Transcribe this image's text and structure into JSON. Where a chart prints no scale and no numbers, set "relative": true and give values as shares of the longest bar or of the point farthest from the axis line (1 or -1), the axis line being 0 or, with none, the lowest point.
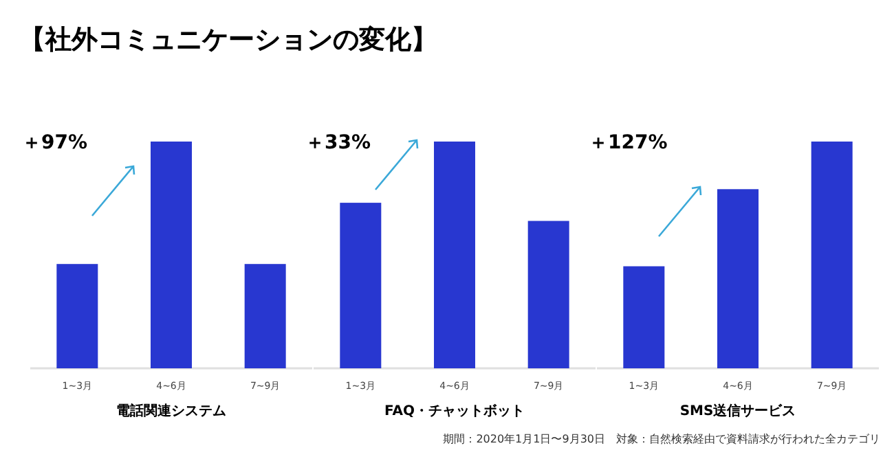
{
  "chart_data": [
    {
      "type": "bar",
      "relative": true,
      "title": "【社外コミュニケーションの変化】",
      "xlabel": "電話関連システム",
      "categories": [
        "1~3月",
        "4~6月",
        "7~9月"
      ],
      "values": [
        0.46,
        1,
        0.46
      ],
      "color": "#2837d0",
      "annotations": [
        "＋97%"
      ]
    },
    {
      "type": "bar",
      "relative": true,
      "xlabel": "FAQ・チャットボット",
      "categories": [
        "1~3月",
        "4~6月",
        "7~9月"
      ],
      "values": [
        0.73,
        1,
        0.65
      ],
      "color": "#2837d0",
      "annotations": [
        "＋33%"
      ]
    },
    {
      "type": "bar",
      "relative": true,
      "xlabel": "SMS送信サービス",
      "categories": [
        "1~3月",
        "4~6月",
        "7~9月"
      ],
      "values": [
        0.45,
        0.79,
        1
      ],
      "color": "#2837d0",
      "annotations": [
        "＋127%",
        "期間：2020年1月1日〜9月30日　対象：自然検索経由で資料請求が行われた全カテゴリ"
      ]
    }
  ]
}
